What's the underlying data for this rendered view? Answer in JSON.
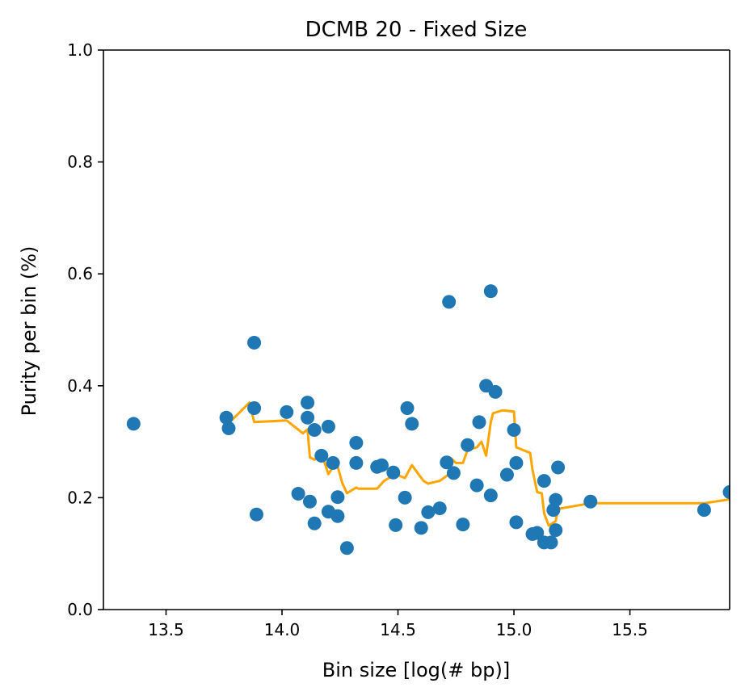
{
  "chart_data": {
    "type": "scatter",
    "title": "DCMB 20 - Fixed Size",
    "xlabel": "Bin size [log(# bp)]",
    "ylabel": "Purity per bin (%)",
    "xlim": [
      13.23,
      15.93
    ],
    "ylim": [
      0.0,
      1.0
    ],
    "x_ticks": [
      {
        "value": 13.5,
        "label": "13.5"
      },
      {
        "value": 14.0,
        "label": "14.0"
      },
      {
        "value": 14.5,
        "label": "14.5"
      },
      {
        "value": 15.0,
        "label": "15.0"
      },
      {
        "value": 15.5,
        "label": "15.5"
      }
    ],
    "y_ticks": [
      {
        "value": 0.0,
        "label": "0.0"
      },
      {
        "value": 0.2,
        "label": "0.2"
      },
      {
        "value": 0.4,
        "label": "0.4"
      },
      {
        "value": 0.6,
        "label": "0.6"
      },
      {
        "value": 0.8,
        "label": "0.8"
      },
      {
        "value": 1.0,
        "label": "1.0"
      }
    ],
    "grid": false,
    "colors": {
      "points": "#1f77b4",
      "trend": "#ffa500"
    },
    "points": [
      [
        13.36,
        0.332
      ],
      [
        13.76,
        0.343
      ],
      [
        13.77,
        0.324
      ],
      [
        13.88,
        0.477
      ],
      [
        13.88,
        0.36
      ],
      [
        13.89,
        0.17
      ],
      [
        14.02,
        0.353
      ],
      [
        14.07,
        0.207
      ],
      [
        14.11,
        0.37
      ],
      [
        14.11,
        0.343
      ],
      [
        14.12,
        0.193
      ],
      [
        14.14,
        0.321
      ],
      [
        14.14,
        0.154
      ],
      [
        14.17,
        0.275
      ],
      [
        14.2,
        0.175
      ],
      [
        14.2,
        0.327
      ],
      [
        14.22,
        0.262
      ],
      [
        14.24,
        0.167
      ],
      [
        14.24,
        0.201
      ],
      [
        14.28,
        0.11
      ],
      [
        14.32,
        0.298
      ],
      [
        14.32,
        0.262
      ],
      [
        14.41,
        0.255
      ],
      [
        14.43,
        0.258
      ],
      [
        14.48,
        0.245
      ],
      [
        14.49,
        0.151
      ],
      [
        14.53,
        0.2
      ],
      [
        14.54,
        0.36
      ],
      [
        14.56,
        0.332
      ],
      [
        14.6,
        0.146
      ],
      [
        14.63,
        0.174
      ],
      [
        14.68,
        0.181
      ],
      [
        14.71,
        0.263
      ],
      [
        14.72,
        0.55
      ],
      [
        14.74,
        0.244
      ],
      [
        14.78,
        0.152
      ],
      [
        14.8,
        0.294
      ],
      [
        14.84,
        0.222
      ],
      [
        14.85,
        0.335
      ],
      [
        14.88,
        0.4
      ],
      [
        14.9,
        0.569
      ],
      [
        14.9,
        0.204
      ],
      [
        14.92,
        0.389
      ],
      [
        14.97,
        0.241
      ],
      [
        15.0,
        0.321
      ],
      [
        15.01,
        0.262
      ],
      [
        15.01,
        0.156
      ],
      [
        15.08,
        0.135
      ],
      [
        15.1,
        0.137
      ],
      [
        15.13,
        0.23
      ],
      [
        15.13,
        0.12
      ],
      [
        15.16,
        0.12
      ],
      [
        15.17,
        0.178
      ],
      [
        15.18,
        0.196
      ],
      [
        15.18,
        0.142
      ],
      [
        15.19,
        0.254
      ],
      [
        15.33,
        0.193
      ],
      [
        15.82,
        0.178
      ],
      [
        15.93,
        0.21
      ]
    ],
    "trend_line": [
      [
        13.77,
        0.333
      ],
      [
        13.86,
        0.37
      ],
      [
        13.88,
        0.335
      ],
      [
        14.02,
        0.338
      ],
      [
        14.09,
        0.315
      ],
      [
        14.11,
        0.322
      ],
      [
        14.12,
        0.272
      ],
      [
        14.14,
        0.268
      ],
      [
        14.17,
        0.28
      ],
      [
        14.2,
        0.242
      ],
      [
        14.22,
        0.255
      ],
      [
        14.24,
        0.256
      ],
      [
        14.26,
        0.226
      ],
      [
        14.28,
        0.208
      ],
      [
        14.32,
        0.218
      ],
      [
        14.33,
        0.216
      ],
      [
        14.41,
        0.216
      ],
      [
        14.44,
        0.23
      ],
      [
        14.49,
        0.242
      ],
      [
        14.53,
        0.235
      ],
      [
        14.56,
        0.258
      ],
      [
        14.61,
        0.23
      ],
      [
        14.63,
        0.225
      ],
      [
        14.68,
        0.23
      ],
      [
        14.72,
        0.242
      ],
      [
        14.73,
        0.27
      ],
      [
        14.75,
        0.262
      ],
      [
        14.78,
        0.262
      ],
      [
        14.8,
        0.285
      ],
      [
        14.84,
        0.29
      ],
      [
        14.86,
        0.3
      ],
      [
        14.88,
        0.275
      ],
      [
        14.9,
        0.335
      ],
      [
        14.91,
        0.351
      ],
      [
        14.95,
        0.356
      ],
      [
        15.0,
        0.354
      ],
      [
        15.01,
        0.29
      ],
      [
        15.07,
        0.28
      ],
      [
        15.08,
        0.25
      ],
      [
        15.1,
        0.21
      ],
      [
        15.12,
        0.208
      ],
      [
        15.13,
        0.172
      ],
      [
        15.15,
        0.15
      ],
      [
        15.18,
        0.158
      ],
      [
        15.19,
        0.18
      ],
      [
        15.33,
        0.19
      ],
      [
        15.82,
        0.19
      ],
      [
        15.93,
        0.197
      ]
    ]
  }
}
